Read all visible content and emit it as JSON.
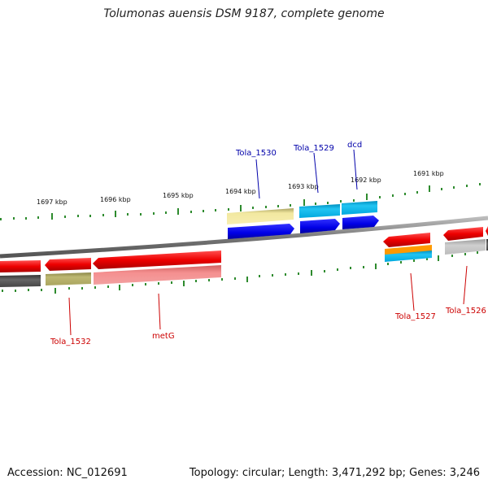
{
  "title": "Tolumonas auensis DSM 9187, complete genome",
  "footer": {
    "accession": "Accession: NC_012691",
    "topology": "Topology: circular; Length: 3,471,292 bp; Genes: 3,246"
  },
  "kbp_labels": [
    "1697 kbp",
    "1696 kbp",
    "1695 kbp",
    "1694 kbp",
    "1693 kbp",
    "1692 kbp",
    "1691 kbp"
  ],
  "colors": {
    "cds": "#ff0000",
    "blue_strand": "#0000ee",
    "cyan_gene": "#00b4ee",
    "khaki_gene": "#f0e68c",
    "olive_gene": "#b5b06a",
    "grey_gene": "#555555",
    "light_grey_gene": "#bdbdbd",
    "pink_gene": "#f08080",
    "orange_gene": "#ff9900",
    "tick_green": "#2e8b2e",
    "label_forward": "#0000aa",
    "label_reverse": "#cc0000"
  },
  "gene_labels": {
    "forward": [
      "Tola_1530",
      "Tola_1529",
      "dcd"
    ],
    "reverse": [
      "Tola_1532",
      "metG",
      "Tola_1527",
      "Tola_1526"
    ]
  }
}
